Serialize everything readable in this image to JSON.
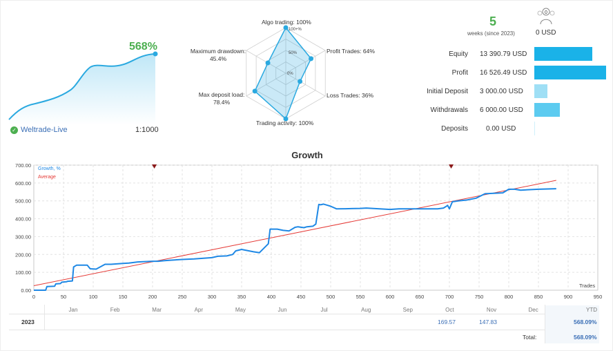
{
  "summary": {
    "growth_pct": "568%",
    "broker": "Weltrade-Live",
    "leverage": "1:1000"
  },
  "radar": {
    "axes": [
      {
        "label": "Algo trading: 100%",
        "value": 100
      },
      {
        "label": "Profit Trades: 64%",
        "value": 64
      },
      {
        "label": "Loss Trades: 36%",
        "value": 36
      },
      {
        "label": "Trading activity: 100%",
        "value": 100
      },
      {
        "label": "Max deposit load:",
        "label2": "78.4%",
        "value": 78.4
      },
      {
        "label": "Maximum drawdown:",
        "label2": "45.4%",
        "value": 45.4
      }
    ],
    "ring_labels": [
      "100+%",
      "50%",
      "0%"
    ]
  },
  "stats": {
    "weeks": "5",
    "weeks_caption": "weeks (since 2023)",
    "subscribers": "0",
    "subscribers_value": "0 USD",
    "rows": [
      {
        "label": "Equity",
        "value": "13 390.79 USD",
        "fraction": 0.81
      },
      {
        "label": "Profit",
        "value": "16 526.49 USD",
        "fraction": 1.0
      },
      {
        "label": "Initial Deposit",
        "value": "3 000.00 USD",
        "fraction": 0.18
      },
      {
        "label": "Withdrawals",
        "value": "6 000.00 USD",
        "fraction": 0.36
      },
      {
        "label": "Deposits",
        "value": "0.00 USD",
        "fraction": 0.0
      }
    ],
    "bar_colors": [
      "#1ab2e8",
      "#1ab2e8",
      "#9fdff5",
      "#5ccbf0",
      "#d0f0fb"
    ]
  },
  "chart_data": {
    "type": "line",
    "title": "Growth",
    "xlabel": "Trades",
    "ylabel": "",
    "xlim": [
      0,
      950
    ],
    "ylim": [
      0,
      700
    ],
    "x_ticks": [
      0,
      50,
      100,
      150,
      200,
      250,
      300,
      350,
      400,
      450,
      500,
      550,
      600,
      650,
      700,
      750,
      800,
      850,
      900,
      950
    ],
    "y_ticks": [
      "0.00",
      "100.00",
      "200.00",
      "300.00",
      "400.00",
      "500.00",
      "600.00",
      "700.00"
    ],
    "y_tick_values": [
      0,
      100,
      200,
      300,
      400,
      500,
      600,
      700
    ],
    "legend": "top-left",
    "grid": true,
    "markers_x": [
      203,
      703
    ],
    "series": [
      {
        "name": "Growth, %",
        "color": "#1e88e5",
        "x": [
          0,
          20,
          22,
          35,
          37,
          45,
          47,
          55,
          57,
          65,
          67,
          72,
          82,
          90,
          95,
          105,
          120,
          130,
          150,
          160,
          175,
          200,
          210,
          220,
          230,
          250,
          270,
          290,
          300,
          310,
          325,
          335,
          340,
          350,
          370,
          380,
          395,
          398,
          410,
          420,
          430,
          440,
          445,
          455,
          460,
          470,
          475,
          480,
          483,
          488,
          495,
          500,
          510,
          525,
          550,
          560,
          600,
          615,
          640,
          680,
          690,
          695,
          697,
          700,
          705,
          715,
          730,
          745,
          760,
          790,
          800,
          810,
          820,
          850,
          880
        ],
        "y": [
          0,
          0,
          20,
          22,
          35,
          37,
          45,
          47,
          50,
          52,
          130,
          140,
          140,
          140,
          120,
          118,
          145,
          145,
          150,
          152,
          158,
          162,
          162,
          165,
          168,
          172,
          175,
          180,
          182,
          190,
          192,
          200,
          220,
          228,
          215,
          210,
          260,
          342,
          342,
          335,
          332,
          352,
          355,
          350,
          355,
          358,
          370,
          480,
          478,
          482,
          475,
          470,
          455,
          456,
          458,
          460,
          452,
          455,
          455,
          455,
          460,
          470,
          475,
          455,
          495,
          500,
          505,
          515,
          540,
          545,
          565,
          565,
          560,
          565,
          568
        ]
      },
      {
        "name": "Average",
        "color": "#e53935",
        "x": [
          0,
          880
        ],
        "y": [
          25,
          615
        ]
      }
    ],
    "months": [
      "Jan",
      "Feb",
      "Mar",
      "Apr",
      "May",
      "Jun",
      "Jul",
      "Aug",
      "Sep",
      "Oct",
      "Nov",
      "Dec"
    ]
  },
  "table": {
    "ytd_header": "YTD",
    "year": "2023",
    "month_values": {
      "Oct": "169.57",
      "Nov": "147.83"
    },
    "ytd": "568.09%",
    "total_label": "Total:",
    "total": "568.09%"
  }
}
